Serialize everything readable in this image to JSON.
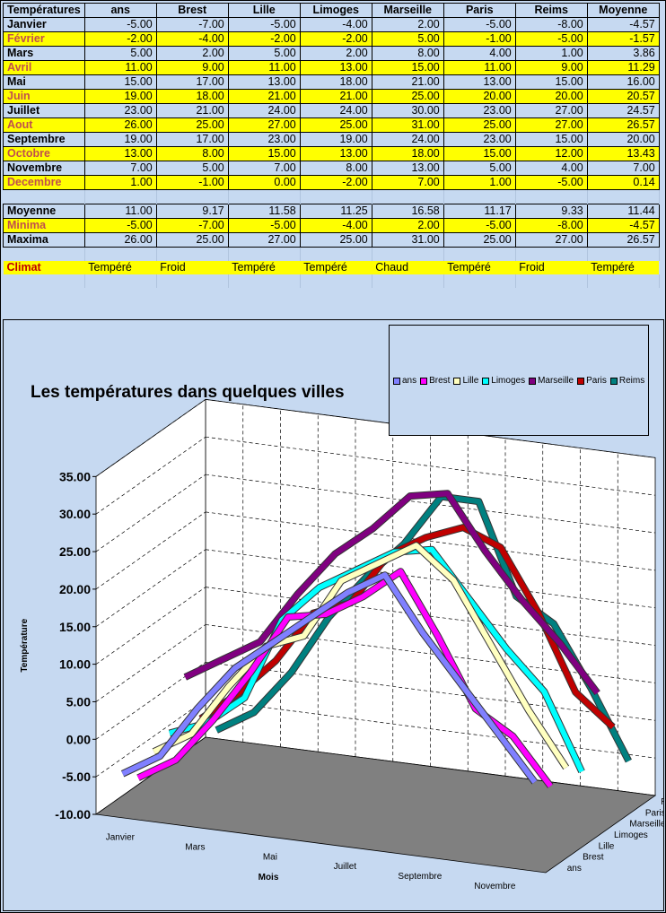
{
  "table": {
    "headers": [
      "Températures",
      "ans",
      "Brest",
      "Lille",
      "Limoges",
      "Marseille",
      "Paris",
      "Reims",
      "Moyenne"
    ],
    "rows": [
      {
        "label": "Janvier",
        "values": [
          "-5.00",
          "-7.00",
          "-5.00",
          "-4.00",
          "2.00",
          "-5.00",
          "-8.00",
          "-4.57"
        ]
      },
      {
        "label": "Février",
        "values": [
          "-2.00",
          "-4.00",
          "-2.00",
          "-2.00",
          "5.00",
          "-1.00",
          "-5.00",
          "-1.57"
        ]
      },
      {
        "label": "Mars",
        "values": [
          "5.00",
          "2.00",
          "5.00",
          "2.00",
          "8.00",
          "4.00",
          "1.00",
          "3.86"
        ]
      },
      {
        "label": "Avril",
        "values": [
          "11.00",
          "9.00",
          "11.00",
          "13.00",
          "15.00",
          "11.00",
          "9.00",
          "11.29"
        ]
      },
      {
        "label": "Mai",
        "values": [
          "15.00",
          "17.00",
          "13.00",
          "18.00",
          "21.00",
          "13.00",
          "15.00",
          "16.00"
        ]
      },
      {
        "label": "Juin",
        "values": [
          "19.00",
          "18.00",
          "21.00",
          "21.00",
          "25.00",
          "20.00",
          "20.00",
          "20.57"
        ]
      },
      {
        "label": "Juillet",
        "values": [
          "23.00",
          "21.00",
          "24.00",
          "24.00",
          "30.00",
          "23.00",
          "27.00",
          "24.57"
        ]
      },
      {
        "label": "Aout",
        "values": [
          "26.00",
          "25.00",
          "27.00",
          "25.00",
          "31.00",
          "25.00",
          "27.00",
          "26.57"
        ]
      },
      {
        "label": "Septembre",
        "values": [
          "19.00",
          "17.00",
          "23.00",
          "19.00",
          "24.00",
          "23.00",
          "15.00",
          "20.00"
        ]
      },
      {
        "label": "Octobre",
        "values": [
          "13.00",
          "8.00",
          "15.00",
          "13.00",
          "18.00",
          "15.00",
          "12.00",
          "13.43"
        ]
      },
      {
        "label": "Novembre",
        "values": [
          "7.00",
          "5.00",
          "7.00",
          "8.00",
          "13.00",
          "5.00",
          "4.00",
          "7.00"
        ]
      },
      {
        "label": "Decembre",
        "values": [
          "1.00",
          "-1.00",
          "0.00",
          "-2.00",
          "7.00",
          "1.00",
          "-5.00",
          "0.14"
        ]
      }
    ],
    "summary": [
      {
        "label": "Moyenne",
        "values": [
          "11.00",
          "9.17",
          "11.58",
          "11.25",
          "16.58",
          "11.17",
          "9.33",
          "11.44"
        ]
      },
      {
        "label": "Minima",
        "values": [
          "-5.00",
          "-7.00",
          "-5.00",
          "-4.00",
          "2.00",
          "-5.00",
          "-8.00",
          "-4.57"
        ]
      },
      {
        "label": "Maxima",
        "values": [
          "26.00",
          "25.00",
          "27.00",
          "25.00",
          "31.00",
          "25.00",
          "27.00",
          "26.57"
        ]
      }
    ],
    "climat": {
      "label": "Climat",
      "values": [
        "Tempéré",
        "Froid",
        "Tempéré",
        "Tempéré",
        "Chaud",
        "Tempéré",
        "Froid",
        "Tempéré"
      ]
    }
  },
  "chart_data": {
    "type": "line",
    "title": "Les températures dans quelques villes",
    "xlabel": "Mois",
    "ylabel": "Température",
    "ylim": [
      -10,
      35
    ],
    "yticks": [
      "35.00",
      "30.00",
      "25.00",
      "20.00",
      "15.00",
      "10.00",
      "5.00",
      "0.00",
      "-5.00",
      "-10.00"
    ],
    "categories": [
      "Janvier",
      "Février",
      "Mars",
      "Avril",
      "Mai",
      "Juin",
      "Juillet",
      "Aout",
      "Septembre",
      "Octobre",
      "Novembre",
      "Decembre"
    ],
    "xtick_labels": [
      "Janvier",
      "Mars",
      "Mai",
      "Juillet",
      "Septembre",
      "Novembre"
    ],
    "depth_labels": [
      "ans",
      "Brest",
      "Lille",
      "Limoges",
      "Marseille",
      "Paris",
      "Reims"
    ],
    "grid": true,
    "legend_position": "top-right",
    "series": [
      {
        "name": "ans",
        "color": "#8080ff",
        "values": [
          -5,
          -2,
          5,
          11,
          15,
          19,
          23,
          26,
          19,
          13,
          7,
          1
        ]
      },
      {
        "name": "Brest",
        "color": "#ff00ff",
        "values": [
          -7,
          -4,
          2,
          9,
          17,
          18,
          21,
          25,
          17,
          8,
          5,
          -1
        ]
      },
      {
        "name": "Lille",
        "color": "#ffffc0",
        "values": [
          -5,
          -2,
          5,
          11,
          13,
          21,
          24,
          27,
          23,
          15,
          7,
          0
        ]
      },
      {
        "name": "Limoges",
        "color": "#00ffff",
        "values": [
          -4,
          -2,
          2,
          13,
          18,
          21,
          24,
          25,
          19,
          13,
          8,
          -2
        ]
      },
      {
        "name": "Marseille",
        "color": "#800080",
        "values": [
          2,
          5,
          8,
          15,
          21,
          25,
          30,
          31,
          24,
          18,
          13,
          7
        ]
      },
      {
        "name": "Paris",
        "color": "#c00000",
        "values": [
          -5,
          -1,
          4,
          11,
          13,
          20,
          23,
          25,
          23,
          15,
          5,
          1
        ]
      },
      {
        "name": "Reims",
        "color": "#008080",
        "values": [
          -8,
          -5,
          1,
          9,
          15,
          20,
          27,
          27,
          15,
          12,
          4,
          -5
        ]
      }
    ]
  }
}
